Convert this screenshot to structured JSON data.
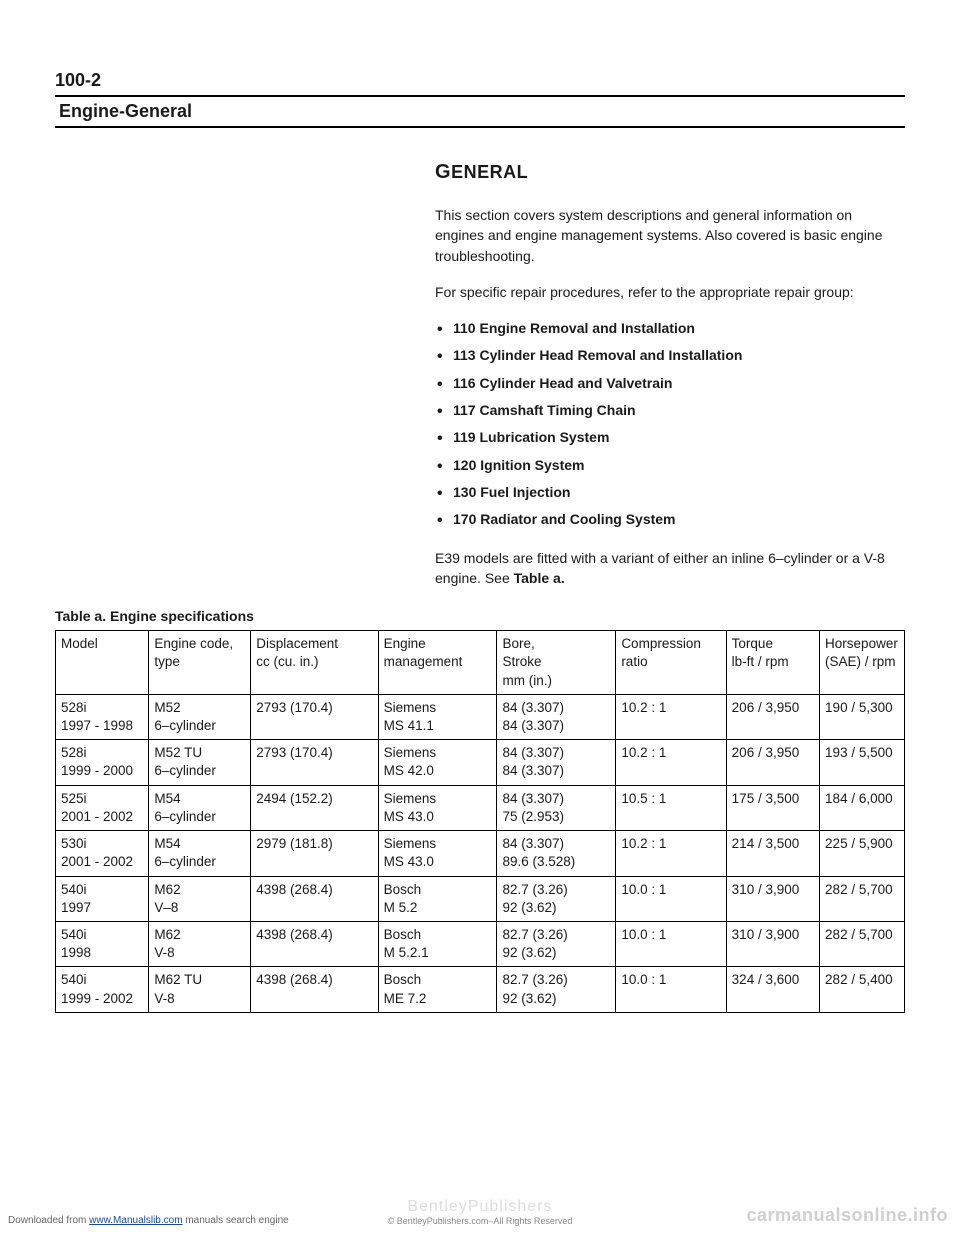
{
  "page_number": "100-2",
  "section_header": "Engine-General",
  "general": {
    "heading_big": "G",
    "heading_rest": "ENERAL",
    "para1": "This section covers system descriptions and general information on engines and engine management systems. Also covered is basic engine troubleshooting.",
    "para2": "For specific repair procedures, refer to the appropriate repair group:",
    "bullets": [
      "110 Engine Removal and Installation",
      "113 Cylinder Head Removal and Installation",
      "116 Cylinder Head and Valvetrain",
      "117 Camshaft Timing Chain",
      "119 Lubrication System",
      "120 Ignition System",
      "130 Fuel Injection",
      "170 Radiator and Cooling System"
    ],
    "para3_a": "E39 models are fitted with a variant of either an inline 6–cylinder or a V-8 engine. See ",
    "para3_b": "Table a."
  },
  "table": {
    "caption": "Table a. Engine specifications",
    "headers": {
      "model": "Model",
      "engine": "Engine code,\ntype",
      "disp": "Displacement\ncc (cu. in.)",
      "mgmt": "Engine\nmanagement",
      "bore": "Bore,\nStroke\nmm (in.)",
      "comp": "Compression\nratio",
      "torque": "Torque\nlb-ft / rpm",
      "hp": "Horsepower\n(SAE) / rpm"
    },
    "rows": [
      {
        "model": "528i\n1997 - 1998",
        "engine": "M52\n6–cylinder",
        "disp": "2793 (170.4)",
        "mgmt": "Siemens\nMS 41.1",
        "bore": "84 (3.307)\n84 (3.307)",
        "comp": "10.2 : 1",
        "torque": "206 / 3,950",
        "hp": "190 / 5,300"
      },
      {
        "model": "528i\n1999 - 2000",
        "engine": "M52 TU\n6–cylinder",
        "disp": "2793 (170.4)",
        "mgmt": "Siemens\nMS 42.0",
        "bore": "84 (3.307)\n84 (3.307)",
        "comp": "10.2 : 1",
        "torque": "206 / 3,950",
        "hp": "193 / 5,500"
      },
      {
        "model": "525i\n2001 - 2002",
        "engine": "M54\n6–cylinder",
        "disp": "2494 (152.2)",
        "mgmt": "Siemens\nMS 43.0",
        "bore": "84 (3.307)\n75 (2.953)",
        "comp": "10.5 : 1",
        "torque": "175 / 3,500",
        "hp": "184 / 6,000"
      },
      {
        "model": "530i\n2001 - 2002",
        "engine": "M54\n6–cylinder",
        "disp": "2979 (181.8)",
        "mgmt": "Siemens\nMS 43.0",
        "bore": "84 (3.307)\n89.6 (3.528)",
        "comp": "10.2 : 1",
        "torque": "214 / 3,500",
        "hp": "225 / 5,900"
      },
      {
        "model": "540i\n1997",
        "engine": "M62\nV–8",
        "disp": "4398 (268.4)",
        "mgmt": "Bosch\nM 5.2",
        "bore": "82.7 (3.26)\n92 (3.62)",
        "comp": "10.0 : 1",
        "torque": "310 / 3,900",
        "hp": "282 / 5,700"
      },
      {
        "model": "540i\n1998",
        "engine": "M62\nV-8",
        "disp": "4398 (268.4)",
        "mgmt": "Bosch\nM 5.2.1",
        "bore": "82.7 (3.26)\n92 (3.62)",
        "comp": "10.0 : 1",
        "torque": "310 / 3,900",
        "hp": "282 / 5,700"
      },
      {
        "model": "540i\n1999 - 2002",
        "engine": "M62 TU\nV-8",
        "disp": "4398 (268.4)",
        "mgmt": "Bosch\nME 7.2",
        "bore": "82.7 (3.26)\n92 (3.62)",
        "comp": "10.0 : 1",
        "torque": "324 / 3,600",
        "hp": "282 / 5,400"
      }
    ]
  },
  "footer": {
    "left_prefix": "Downloaded from ",
    "left_link": "www.Manualslib.com",
    "left_suffix": " manuals search engine",
    "center_pub": "BentleyPublishers",
    "center_com": ".com",
    "center_rights": "© BentleyPublishers.com–All Rights Reserved",
    "right": "carmanualsonline.info"
  }
}
